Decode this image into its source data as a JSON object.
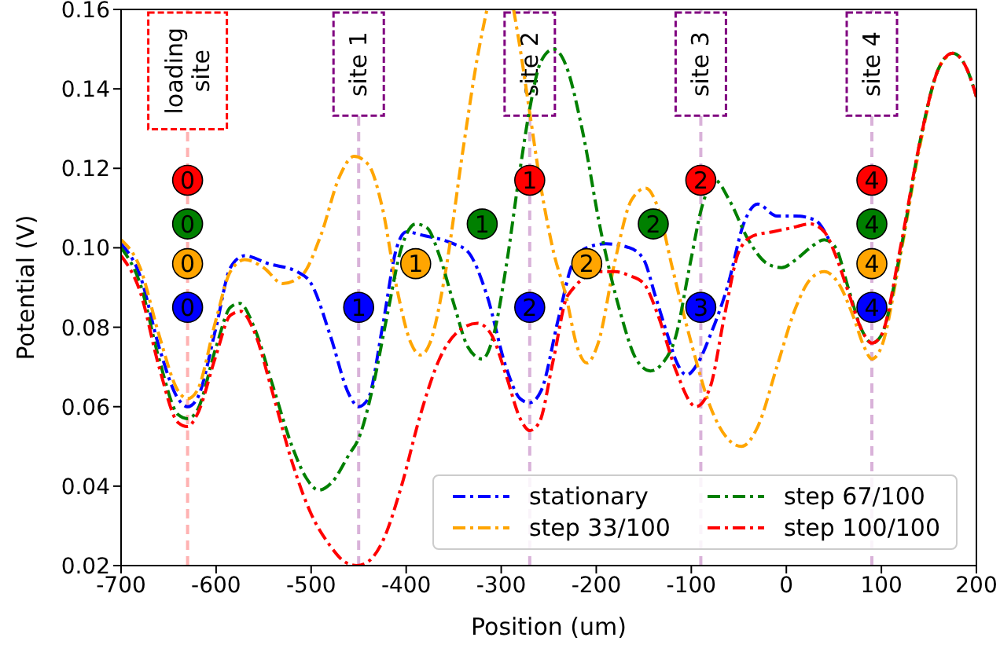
{
  "chart_data": {
    "type": "line",
    "xlabel": "Position (um)",
    "ylabel": "Potential (V)",
    "xlim": [
      -700,
      200
    ],
    "xticks": [
      -700,
      -600,
      -500,
      -400,
      -300,
      -200,
      -100,
      0,
      100,
      200
    ],
    "ylim": [
      0.02,
      0.16
    ],
    "yticks": [
      0.02,
      0.04,
      0.06,
      0.08,
      {
        "value": 0.1,
        "label": "0.10"
      },
      0.12,
      0.14,
      0.16
    ],
    "legend": "bottom right",
    "line_style": "dashed",
    "ref_lines": [
      {
        "axis": "x",
        "value": -630,
        "label": "loading site",
        "color": "#ff0000",
        "line_style": "dashed"
      },
      {
        "axis": "x",
        "value": -450,
        "label": "site 1",
        "color": "#800080",
        "line_style": "dashed"
      },
      {
        "axis": "x",
        "value": -270,
        "label": "site 2",
        "color": "#800080",
        "line_style": "dashed"
      },
      {
        "axis": "x",
        "value": -90,
        "label": "site 3",
        "color": "#800080",
        "line_style": "dashed"
      },
      {
        "axis": "x",
        "value": 90,
        "label": "site 4",
        "color": "#800080",
        "line_style": "dashed"
      }
    ],
    "series": [
      {
        "name": "stationary",
        "color": "#0000ff",
        "x": [
          -700,
          -680,
          -660,
          -640,
          -630,
          -620,
          -600,
          -585,
          -570,
          -545,
          -515,
          -500,
          -480,
          -460,
          -450,
          -440,
          -425,
          -410,
          -400,
          -380,
          -350,
          -335,
          -315,
          -295,
          -280,
          -270,
          -258,
          -240,
          -225,
          -210,
          -190,
          -165,
          -150,
          -138,
          -125,
          -115,
          -105,
          -93,
          -80,
          -61,
          -45,
          -30,
          -10,
          10,
          30,
          45
        ],
        "values": [
          0.101,
          0.093,
          0.075,
          0.062,
          0.06,
          0.062,
          0.08,
          0.095,
          0.098,
          0.096,
          0.094,
          0.091,
          0.078,
          0.063,
          0.06,
          0.062,
          0.08,
          0.1,
          0.104,
          0.103,
          0.101,
          0.099,
          0.088,
          0.07,
          0.062,
          0.061,
          0.064,
          0.082,
          0.096,
          0.1,
          0.101,
          0.1,
          0.097,
          0.088,
          0.078,
          0.071,
          0.068,
          0.071,
          0.078,
          0.091,
          0.106,
          0.111,
          0.108,
          0.108,
          0.107,
          0.102
        ]
      },
      {
        "name": "step 33/100",
        "color": "#ffa500",
        "x": [
          -700,
          -680,
          -660,
          -640,
          -630,
          -620,
          -600,
          -585,
          -570,
          -550,
          -530,
          -510,
          -490,
          -470,
          -455,
          -440,
          -425,
          -410,
          -395,
          -385,
          -375,
          -360,
          -340,
          -325,
          -315,
          -300,
          -287,
          -280,
          -270,
          -258,
          -245,
          -232,
          -220,
          -210,
          -198,
          -180,
          -163,
          -148,
          -135,
          -120,
          -100,
          -80,
          -62,
          -47,
          -30,
          -10,
          10,
          25,
          40,
          55,
          70,
          82,
          90,
          100,
          120,
          140,
          160,
          175
        ],
        "values": [
          0.102,
          0.095,
          0.078,
          0.064,
          0.062,
          0.064,
          0.082,
          0.094,
          0.097,
          0.095,
          0.091,
          0.093,
          0.103,
          0.118,
          0.123,
          0.121,
          0.11,
          0.09,
          0.076,
          0.073,
          0.076,
          0.092,
          0.125,
          0.148,
          0.16,
          null,
          0.16,
          0.15,
          0.134,
          0.115,
          0.099,
          0.088,
          0.075,
          0.071,
          0.076,
          0.097,
          0.112,
          0.115,
          0.11,
          0.095,
          0.076,
          0.06,
          0.052,
          0.05,
          0.055,
          0.07,
          0.085,
          0.092,
          0.094,
          0.091,
          0.083,
          0.075,
          0.072,
          0.075,
          0.098,
          0.125,
          0.145,
          0.149
        ]
      },
      {
        "name": "step 67/100",
        "color": "#008000",
        "x": [
          -700,
          -680,
          -660,
          -640,
          -630,
          -620,
          -600,
          -585,
          -575,
          -560,
          -540,
          -520,
          -505,
          -492,
          -478,
          -460,
          -450,
          -435,
          -420,
          -405,
          -390,
          -378,
          -365,
          -350,
          -335,
          -320,
          -308,
          -295,
          -280,
          -270,
          -258,
          -245,
          -232,
          -215,
          -195,
          -175,
          -158,
          -143,
          -130,
          -116,
          -102,
          -88,
          -75,
          -60,
          -40,
          -20,
          -5,
          10,
          25,
          40,
          52,
          65,
          80,
          90,
          100,
          120,
          140,
          160,
          175,
          190,
          200
        ],
        "values": [
          0.1,
          0.091,
          0.072,
          0.058,
          0.057,
          0.059,
          0.075,
          0.085,
          0.086,
          0.08,
          0.065,
          0.05,
          0.042,
          0.039,
          0.041,
          0.048,
          0.052,
          0.065,
          0.083,
          0.1,
          0.106,
          0.105,
          0.098,
          0.086,
          0.075,
          0.072,
          0.078,
          0.095,
          0.12,
          0.135,
          0.147,
          0.15,
          0.146,
          0.13,
          0.104,
          0.084,
          0.072,
          0.069,
          0.071,
          0.078,
          0.095,
          0.111,
          0.117,
          0.112,
          0.102,
          0.096,
          0.095,
          0.097,
          0.1,
          0.102,
          0.1,
          0.09,
          0.079,
          0.076,
          0.078,
          0.099,
          0.126,
          0.145,
          0.149,
          0.145,
          0.138
        ]
      },
      {
        "name": "step 100/100",
        "color": "#ff0000",
        "x": [
          -700,
          -680,
          -660,
          -640,
          -630,
          -620,
          -600,
          -585,
          -574,
          -560,
          -540,
          -520,
          -500,
          -480,
          -465,
          -452,
          -440,
          -425,
          -405,
          -385,
          -365,
          -345,
          -325,
          -310,
          -295,
          -280,
          -270,
          -260,
          -245,
          -230,
          -195,
          -180,
          -165,
          -150,
          -135,
          -116,
          -95,
          -80,
          -65,
          -50,
          -35,
          -15,
          5,
          25,
          40,
          52,
          65,
          80,
          90,
          100,
          120,
          140,
          160,
          175,
          190,
          200
        ],
        "values": [
          0.098,
          0.089,
          0.07,
          0.056,
          0.055,
          0.058,
          0.073,
          0.083,
          0.084,
          0.079,
          0.063,
          0.046,
          0.033,
          0.025,
          0.021,
          0.02,
          0.021,
          0.026,
          0.04,
          0.058,
          0.072,
          0.079,
          0.081,
          0.078,
          0.068,
          0.057,
          0.054,
          0.056,
          0.072,
          0.088,
          0.094,
          0.094,
          0.093,
          0.091,
          0.083,
          0.069,
          0.06,
          0.065,
          0.083,
          0.099,
          0.103,
          0.104,
          0.105,
          0.106,
          0.104,
          0.098,
          0.089,
          0.079,
          0.076,
          0.078,
          0.1,
          0.126,
          0.145,
          0.149,
          0.145,
          0.138
        ]
      },
      {
        "type": "scatter",
        "marker": "circle",
        "color": "#ff0000",
        "x": [
          -630,
          -270,
          -90,
          90
        ],
        "values": [
          0.117,
          0.117,
          0.117,
          0.117
        ]
      },
      {
        "type": "scatter",
        "marker": "circle",
        "color": "#008000",
        "x": [
          -630,
          -320,
          -140,
          90
        ],
        "values": [
          0.106,
          0.106,
          0.106,
          0.106
        ]
      },
      {
        "type": "scatter",
        "marker": "circle",
        "color": "#ffa500",
        "x": [
          -630,
          -390,
          -210,
          90
        ],
        "values": [
          0.096,
          0.096,
          0.096,
          0.096
        ]
      },
      {
        "type": "scatter",
        "marker": "circle",
        "color": "#0000ff",
        "x": [
          -630,
          -450,
          -270,
          -90,
          90
        ],
        "values": [
          0.085,
          0.085,
          0.085,
          0.085,
          0.085
        ]
      }
    ],
    "annotations": [
      {
        "text": "0",
        "x": -630,
        "y": 0.117
      },
      {
        "text": "1",
        "x": -270,
        "y": 0.117
      },
      {
        "text": "2",
        "x": -90,
        "y": 0.117
      },
      {
        "text": "4",
        "x": 90,
        "y": 0.117
      },
      {
        "text": "0",
        "x": -630,
        "y": 0.106
      },
      {
        "text": "1",
        "x": -320,
        "y": 0.106
      },
      {
        "text": "2",
        "x": -140,
        "y": 0.106
      },
      {
        "text": "4",
        "x": 90,
        "y": 0.106
      },
      {
        "text": "0",
        "x": -630,
        "y": 0.096
      },
      {
        "text": "1",
        "x": -390,
        "y": 0.096
      },
      {
        "text": "2",
        "x": -210,
        "y": 0.096
      },
      {
        "text": "4",
        "x": 90,
        "y": 0.096
      },
      {
        "text": "0",
        "x": -630,
        "y": 0.085
      },
      {
        "text": "1",
        "x": -450,
        "y": 0.085
      },
      {
        "text": "2",
        "x": -270,
        "y": 0.085
      },
      {
        "text": "3",
        "x": -90,
        "y": 0.085
      },
      {
        "text": "4",
        "x": 90,
        "y": 0.085
      }
    ]
  }
}
